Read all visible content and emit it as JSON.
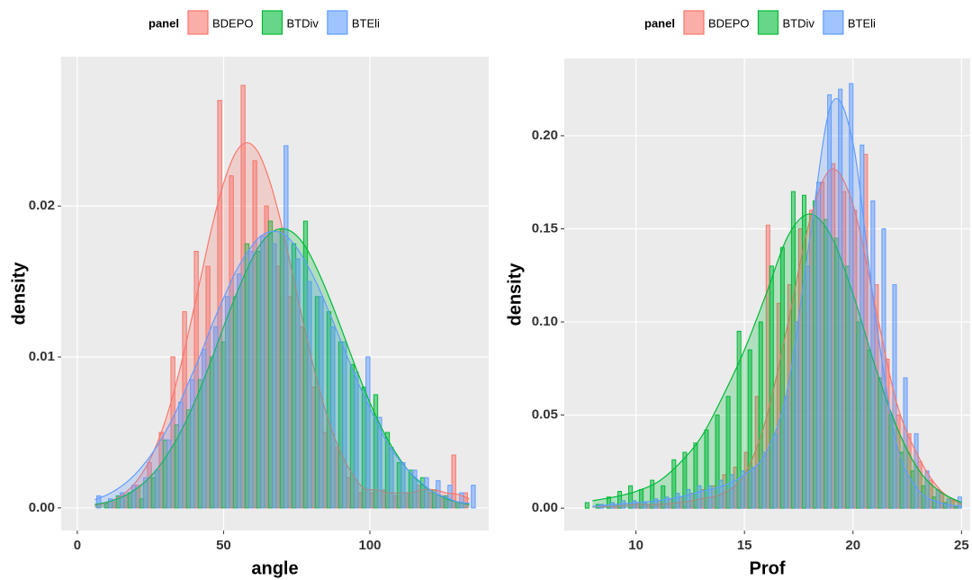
{
  "chart_data": [
    {
      "type": "histogram",
      "legend_title": "panel",
      "x_label": "angle",
      "y_label": "density",
      "xlim": [
        -5.5,
        140.6
      ],
      "ylim": [
        -0.0015,
        0.0299
      ],
      "xticks": [
        0,
        50,
        100
      ],
      "yticks": [
        {
          "value": 0,
          "label": "0.00"
        },
        0.01,
        0.02
      ],
      "grid": true,
      "bins": [
        4,
        8,
        12,
        16,
        20,
        24,
        28,
        32,
        36,
        40,
        44,
        48,
        52,
        56,
        60,
        64,
        68,
        72,
        76,
        80,
        84,
        88,
        92,
        96,
        100,
        104,
        108,
        112,
        116,
        120,
        124,
        128,
        132,
        136
      ],
      "density_x": [
        6,
        10,
        14,
        18,
        22,
        26,
        30,
        34,
        38,
        42,
        46,
        50,
        54,
        58,
        62,
        66,
        70,
        74,
        78,
        82,
        86,
        90,
        94,
        98,
        102,
        106,
        110,
        114,
        118,
        122,
        126,
        130,
        134
      ],
      "series": [
        {
          "name": "BDEPO",
          "color": "#F8766D",
          "values": [
            0,
            0,
            0.0004,
            0.0008,
            0.0015,
            0.003,
            0.005,
            0.01,
            0.013,
            0.017,
            0.016,
            0.027,
            0.022,
            0.028,
            0.023,
            0.02,
            0.016,
            0.014,
            0.012,
            0.008,
            0.005,
            0.004,
            0.002,
            0.001,
            0.001,
            0.0012,
            0.0008,
            0.001,
            0.0015,
            0.001,
            0.0008,
            0.0035,
            0.001
          ],
          "density": [
            0.00017,
            0.00035,
            0.00069,
            0.00128,
            0.00224,
            0.00369,
            0.00573,
            0.00839,
            0.0116,
            0.0151,
            0.0186,
            0.0215,
            0.0235,
            0.0242,
            0.0235,
            0.0215,
            0.0186,
            0.0151,
            0.0116,
            0.00839,
            0.00573,
            0.00369,
            0.00224,
            0.00128,
            0.0012,
            0.001,
            0.001,
            0.001,
            0.0012,
            0.0012,
            0.001,
            0.0009,
            0.0006
          ]
        },
        {
          "name": "BTDiv",
          "color": "#00BA38",
          "values": [
            0,
            0.0003,
            0.0008,
            0.001,
            0.0006,
            0.002,
            0.0045,
            0.0055,
            0.0065,
            0.0085,
            0.01,
            0.011,
            0.014,
            0.0175,
            0.017,
            0.019,
            0.0185,
            0.0175,
            0.019,
            0.014,
            0.013,
            0.011,
            0.0095,
            0.008,
            0.0075,
            0.005,
            0.003,
            0.0025,
            0.002,
            0.0012,
            0.0008,
            0.0004,
            0
          ],
          "density": [
            0.00022,
            0.00038,
            0.00062,
            0.001,
            0.00153,
            0.00228,
            0.0033,
            0.00456,
            0.0061,
            0.0079,
            0.0099,
            0.012,
            0.014,
            0.0158,
            0.0173,
            0.0182,
            0.0185,
            0.0182,
            0.0173,
            0.0158,
            0.014,
            0.012,
            0.0099,
            0.0079,
            0.0061,
            0.00456,
            0.0033,
            0.00228,
            0.00153,
            0.001,
            0.00062,
            0.00038,
            0.00022
          ]
        },
        {
          "name": "BTEli",
          "color": "#619CFF",
          "values": [
            0.0008,
            0.0006,
            0.001,
            0.0015,
            0.002,
            0.0025,
            0.0045,
            0.007,
            0.0085,
            0.0105,
            0.012,
            0.014,
            0.0155,
            0.017,
            0.018,
            0.0175,
            0.024,
            0.0165,
            0.015,
            0.014,
            0.012,
            0.011,
            0.009,
            0.01,
            0.006,
            0.004,
            0.003,
            0.0025,
            0.002,
            0.0018,
            0.0015,
            0.001,
            0.0015
          ],
          "density": [
            0.00055,
            0.00085,
            0.00129,
            0.00189,
            0.00271,
            0.00373,
            0.005,
            0.0065,
            0.0083,
            0.0101,
            0.0121,
            0.0139,
            0.0156,
            0.0169,
            0.0179,
            0.0183,
            0.0182,
            0.0175,
            0.0163,
            0.0148,
            0.013,
            0.0111,
            0.0092,
            0.0074,
            0.0058,
            0.0043,
            0.0032,
            0.0023,
            0.0016,
            0.001,
            0.0007,
            0.0004,
            0.0003
          ]
        }
      ]
    },
    {
      "type": "histogram",
      "legend_title": "panel",
      "x_label": "Prof",
      "y_label": "density",
      "xlim": [
        6.7,
        25.4
      ],
      "ylim": [
        -0.012,
        0.2415
      ],
      "xticks": [
        10,
        15,
        20,
        25
      ],
      "yticks": [
        {
          "value": 0,
          "label": "0.00"
        },
        0.05,
        {
          "value": 0.1,
          "label": "0.10"
        },
        0.15,
        {
          "value": 0.2,
          "label": "0.20"
        }
      ],
      "grid": true,
      "bins": [
        7.5,
        8,
        8.5,
        9,
        9.5,
        10,
        10.5,
        11,
        11.5,
        12,
        12.5,
        13,
        13.5,
        14,
        14.5,
        15,
        15.5,
        16,
        16.5,
        17,
        17.5,
        18,
        18.5,
        19,
        19.5,
        20,
        20.5,
        21,
        21.5,
        22,
        22.5,
        23,
        23.5,
        24,
        24.5,
        25
      ],
      "density_x": [
        8,
        9,
        10,
        11,
        12,
        13,
        14,
        15,
        16,
        17,
        18,
        19,
        20,
        21,
        22,
        23,
        24,
        25
      ],
      "series": [
        {
          "name": "BDEPO",
          "color": "#F8766D",
          "values": [
            0,
            0,
            0,
            0.002,
            0,
            0.003,
            0.002,
            0.004,
            0.005,
            0.006,
            0.008,
            0.01,
            0.012,
            0.018,
            0.022,
            0.03,
            0.06,
            0.152,
            0.11,
            0.12,
            0.15,
            0.16,
            0.175,
            0.185,
            0.17,
            0.16,
            0.19,
            0.12,
            0.08,
            0.05,
            0.04,
            0.025,
            0.015,
            0.008,
            0.004
          ],
          "density": [
            0.001,
            0.001,
            0.002,
            0.002,
            0.003,
            0.005,
            0.008,
            0.018,
            0.048,
            0.099,
            0.154,
            0.182,
            0.163,
            0.11,
            0.057,
            0.028,
            0.01,
            0.002
          ]
        },
        {
          "name": "BTDiv",
          "color": "#00BA38",
          "values": [
            0.003,
            0.002,
            0.006,
            0.009,
            0.012,
            0.01,
            0.015,
            0.012,
            0.026,
            0.03,
            0.035,
            0.042,
            0.05,
            0.06,
            0.095,
            0.085,
            0.1,
            0.13,
            0.14,
            0.17,
            0.168,
            0.165,
            0.155,
            0.145,
            0.13,
            0.1,
            0.085,
            0.07,
            0.05,
            0.03,
            0.02,
            0.012,
            0.006,
            0.003,
            0.001
          ],
          "density": [
            0.004,
            0.006,
            0.009,
            0.014,
            0.024,
            0.038,
            0.06,
            0.085,
            0.115,
            0.146,
            0.158,
            0.146,
            0.115,
            0.077,
            0.044,
            0.021,
            0.009,
            0.003
          ]
        },
        {
          "name": "BTEli",
          "color": "#619CFF",
          "values": [
            0,
            0.002,
            0.003,
            0.004,
            0.004,
            0.003,
            0.005,
            0.006,
            0.008,
            0.01,
            0.012,
            0.012,
            0.015,
            0.018,
            0.02,
            0.022,
            0.03,
            0.04,
            0.06,
            0.1,
            0.13,
            0.175,
            0.222,
            0.225,
            0.228,
            0.195,
            0.165,
            0.15,
            0.12,
            0.07,
            0.04,
            0.02,
            0.01,
            0.005,
            0.006
          ],
          "density": [
            0.001,
            0.002,
            0.003,
            0.004,
            0.006,
            0.009,
            0.012,
            0.018,
            0.03,
            0.065,
            0.144,
            0.217,
            0.196,
            0.106,
            0.035,
            0.01,
            0.003,
            0.001
          ]
        }
      ]
    }
  ]
}
